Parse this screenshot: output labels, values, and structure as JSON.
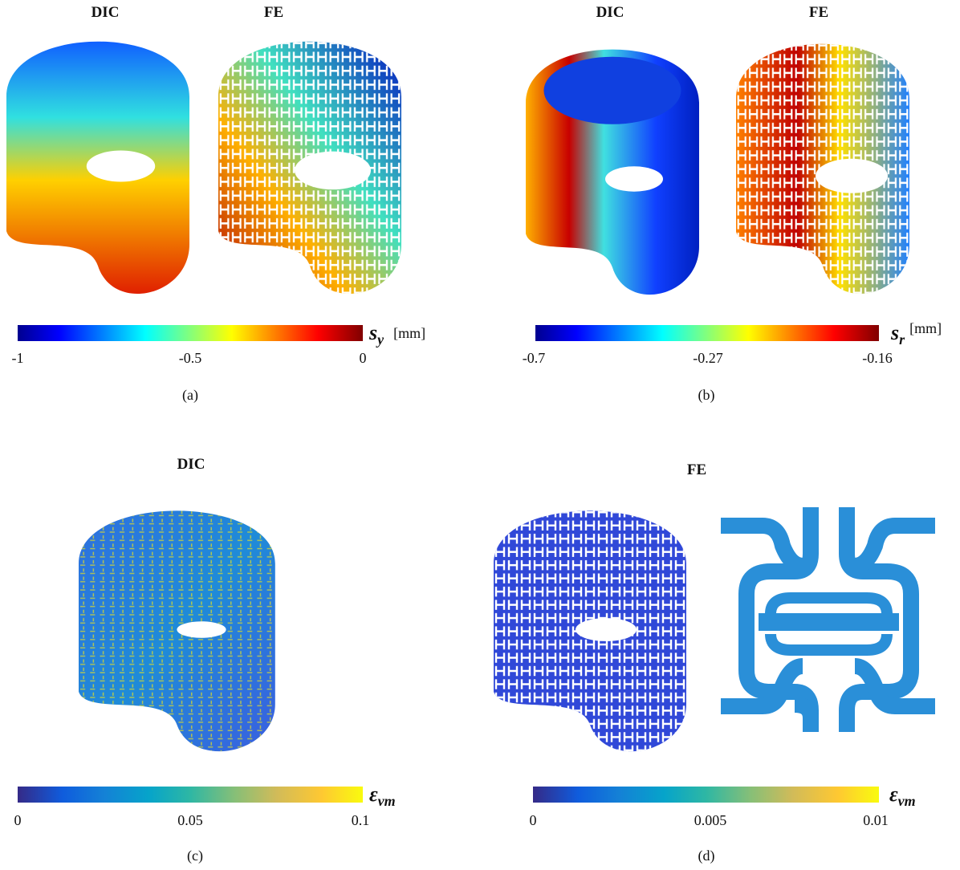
{
  "panels": [
    {
      "titles": [
        "DIC",
        "FE"
      ],
      "colorbar": {
        "symbol": "s",
        "sub": "y",
        "unit": "[mm]",
        "ticks": [
          "-1",
          "-0.5",
          "0"
        ]
      },
      "caption": "(a)"
    },
    {
      "titles": [
        "DIC",
        "FE"
      ],
      "colorbar": {
        "symbol": "s",
        "sub": "r",
        "unit": "[mm]",
        "ticks": [
          "-0.7",
          "-0.27",
          "-0.16"
        ]
      },
      "caption": "(b)"
    },
    {
      "titles": [
        "DIC"
      ],
      "colorbar": {
        "symbol": "ε",
        "sub": "vm",
        "ticks": [
          "0",
          "0.05",
          "0.1"
        ]
      },
      "caption": "(c)"
    },
    {
      "titles": [
        "FE"
      ],
      "colorbar": {
        "symbol": "ε",
        "sub": "vm",
        "ticks": [
          "0",
          "0.005",
          "0.01"
        ]
      },
      "caption": "(d)"
    }
  ]
}
